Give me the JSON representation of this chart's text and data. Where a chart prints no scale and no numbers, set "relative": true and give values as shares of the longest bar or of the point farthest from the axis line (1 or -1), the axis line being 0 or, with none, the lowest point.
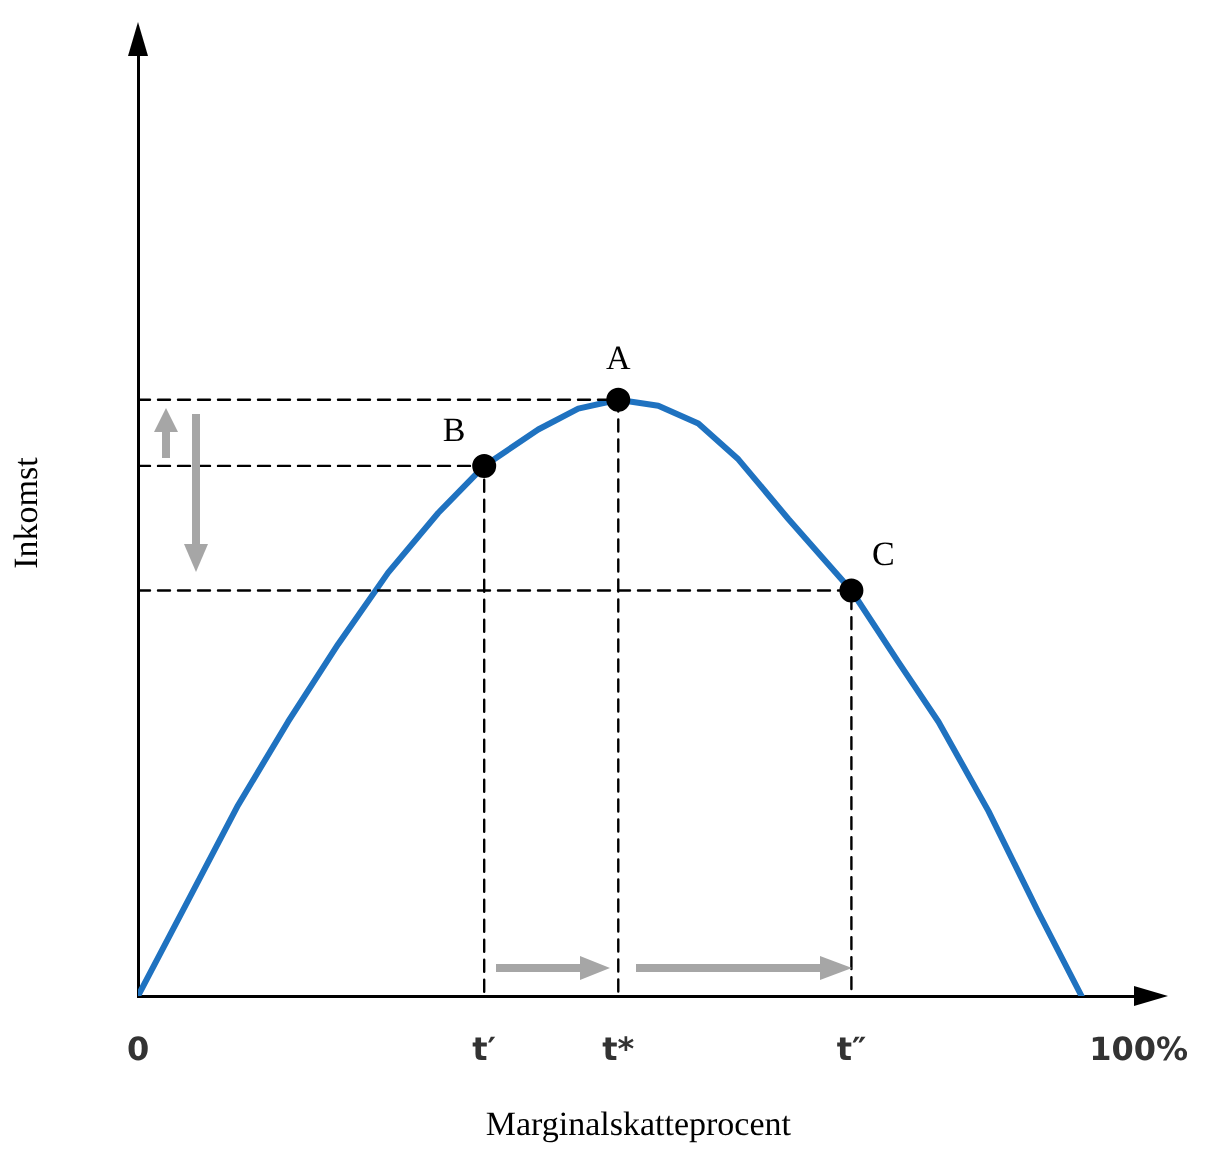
{
  "chart_data": {
    "type": "line",
    "relative": true,
    "xlabel": "Marginalskatteprocent",
    "ylabel": "Inkomst",
    "xlim": [
      0,
      100
    ],
    "xticks": [
      0,
      {
        "value": 34.6,
        "label": "t′"
      },
      {
        "value": 48,
        "label": "t*"
      },
      {
        "value": 71.3,
        "label": "t″"
      },
      {
        "value": 100,
        "label": "100%"
      }
    ],
    "series": [
      {
        "color": "#1f72c0",
        "x": [
          0,
          5,
          10,
          15,
          20,
          25,
          30,
          34.6,
          40,
          44,
          48,
          52,
          56,
          60,
          65,
          71.3,
          76,
          80,
          85,
          90,
          94.3
        ],
        "values": [
          0,
          0.16,
          0.32,
          0.46,
          0.59,
          0.71,
          0.81,
          0.889,
          0.95,
          0.985,
          1,
          0.99,
          0.96,
          0.9,
          0.8,
          0.68,
          0.56,
          0.46,
          0.31,
          0.14,
          0
        ]
      },
      {
        "line_style": "dashed",
        "color": "#000000",
        "x": [
          0,
          48,
          48
        ],
        "values": [
          1,
          1,
          0
        ]
      },
      {
        "line_style": "dashed",
        "color": "#000000",
        "x": [
          0,
          34.6,
          34.6
        ],
        "values": [
          0.889,
          0.889,
          0
        ]
      },
      {
        "line_style": "dashed",
        "color": "#000000",
        "x": [
          0,
          71.3,
          71.3
        ],
        "values": [
          0.68,
          0.68,
          0
        ]
      },
      {
        "type": "scatter",
        "marker": "circle",
        "color": "#000000",
        "x": [
          34.6,
          48,
          71.3
        ],
        "values": [
          0.889,
          1,
          0.68
        ]
      }
    ],
    "annotations": [
      {
        "text": "A",
        "x": 48,
        "y": 1
      },
      {
        "text": "B",
        "x": 34.6,
        "y": 0.889
      },
      {
        "text": "C",
        "x": 71.3,
        "y": 0.68
      }
    ]
  }
}
